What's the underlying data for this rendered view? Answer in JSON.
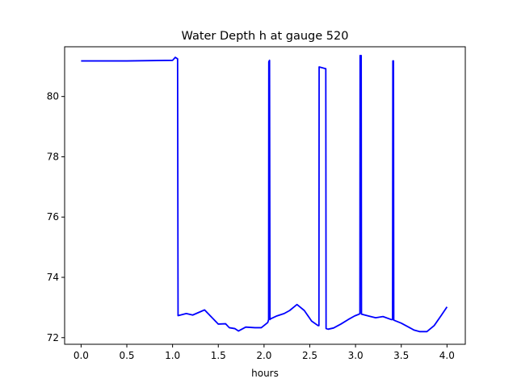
{
  "chart_data": {
    "type": "line",
    "title": "Water Depth h at gauge 520",
    "xlabel": "hours",
    "ylabel": "",
    "xlim": [
      -0.18,
      4.2
    ],
    "ylim": [
      71.78,
      81.65
    ],
    "xticks": [
      0.0,
      0.5,
      1.0,
      1.5,
      2.0,
      2.5,
      3.0,
      3.5,
      4.0
    ],
    "xtick_labels": [
      "0.0",
      "0.5",
      "1.0",
      "1.5",
      "2.0",
      "2.5",
      "3.0",
      "3.5",
      "4.0"
    ],
    "yticks": [
      72,
      74,
      76,
      78,
      80
    ],
    "ytick_labels": [
      "72",
      "74",
      "76",
      "78",
      "80"
    ],
    "grid": false,
    "line_color": "#0000ff",
    "series": [
      {
        "x": [
          0.0,
          0.5,
          1.0,
          1.03,
          1.055,
          1.06,
          1.15,
          1.22,
          1.35,
          1.42,
          1.5,
          1.58,
          1.62,
          1.68,
          1.72,
          1.8,
          1.9,
          1.97,
          2.04,
          2.05,
          2.052,
          2.06,
          2.065,
          2.07,
          2.14,
          2.22,
          2.28,
          2.36,
          2.44,
          2.52,
          2.59,
          2.6,
          2.602,
          2.675,
          2.678,
          2.7,
          2.76,
          2.84,
          2.92,
          2.99,
          3.04,
          3.048,
          3.05,
          3.062,
          3.065,
          3.14,
          3.22,
          3.3,
          3.39,
          3.405,
          3.408,
          3.415,
          3.418,
          3.5,
          3.58,
          3.64,
          3.7,
          3.78,
          3.86,
          3.94,
          4.0
        ],
        "y": [
          81.18,
          81.18,
          81.2,
          81.3,
          81.25,
          72.73,
          72.8,
          72.75,
          72.92,
          72.7,
          72.45,
          72.46,
          72.33,
          72.3,
          72.22,
          72.35,
          72.33,
          72.33,
          72.5,
          72.6,
          81.15,
          81.2,
          72.6,
          72.62,
          72.72,
          72.8,
          72.9,
          73.1,
          72.9,
          72.55,
          72.4,
          72.4,
          80.98,
          80.92,
          72.3,
          72.28,
          72.32,
          72.45,
          72.6,
          72.72,
          72.78,
          72.8,
          81.36,
          81.36,
          72.78,
          72.72,
          72.66,
          72.7,
          72.6,
          72.6,
          81.18,
          81.18,
          72.58,
          72.48,
          72.35,
          72.25,
          72.2,
          72.2,
          72.4,
          72.75,
          73.02
        ]
      }
    ]
  }
}
